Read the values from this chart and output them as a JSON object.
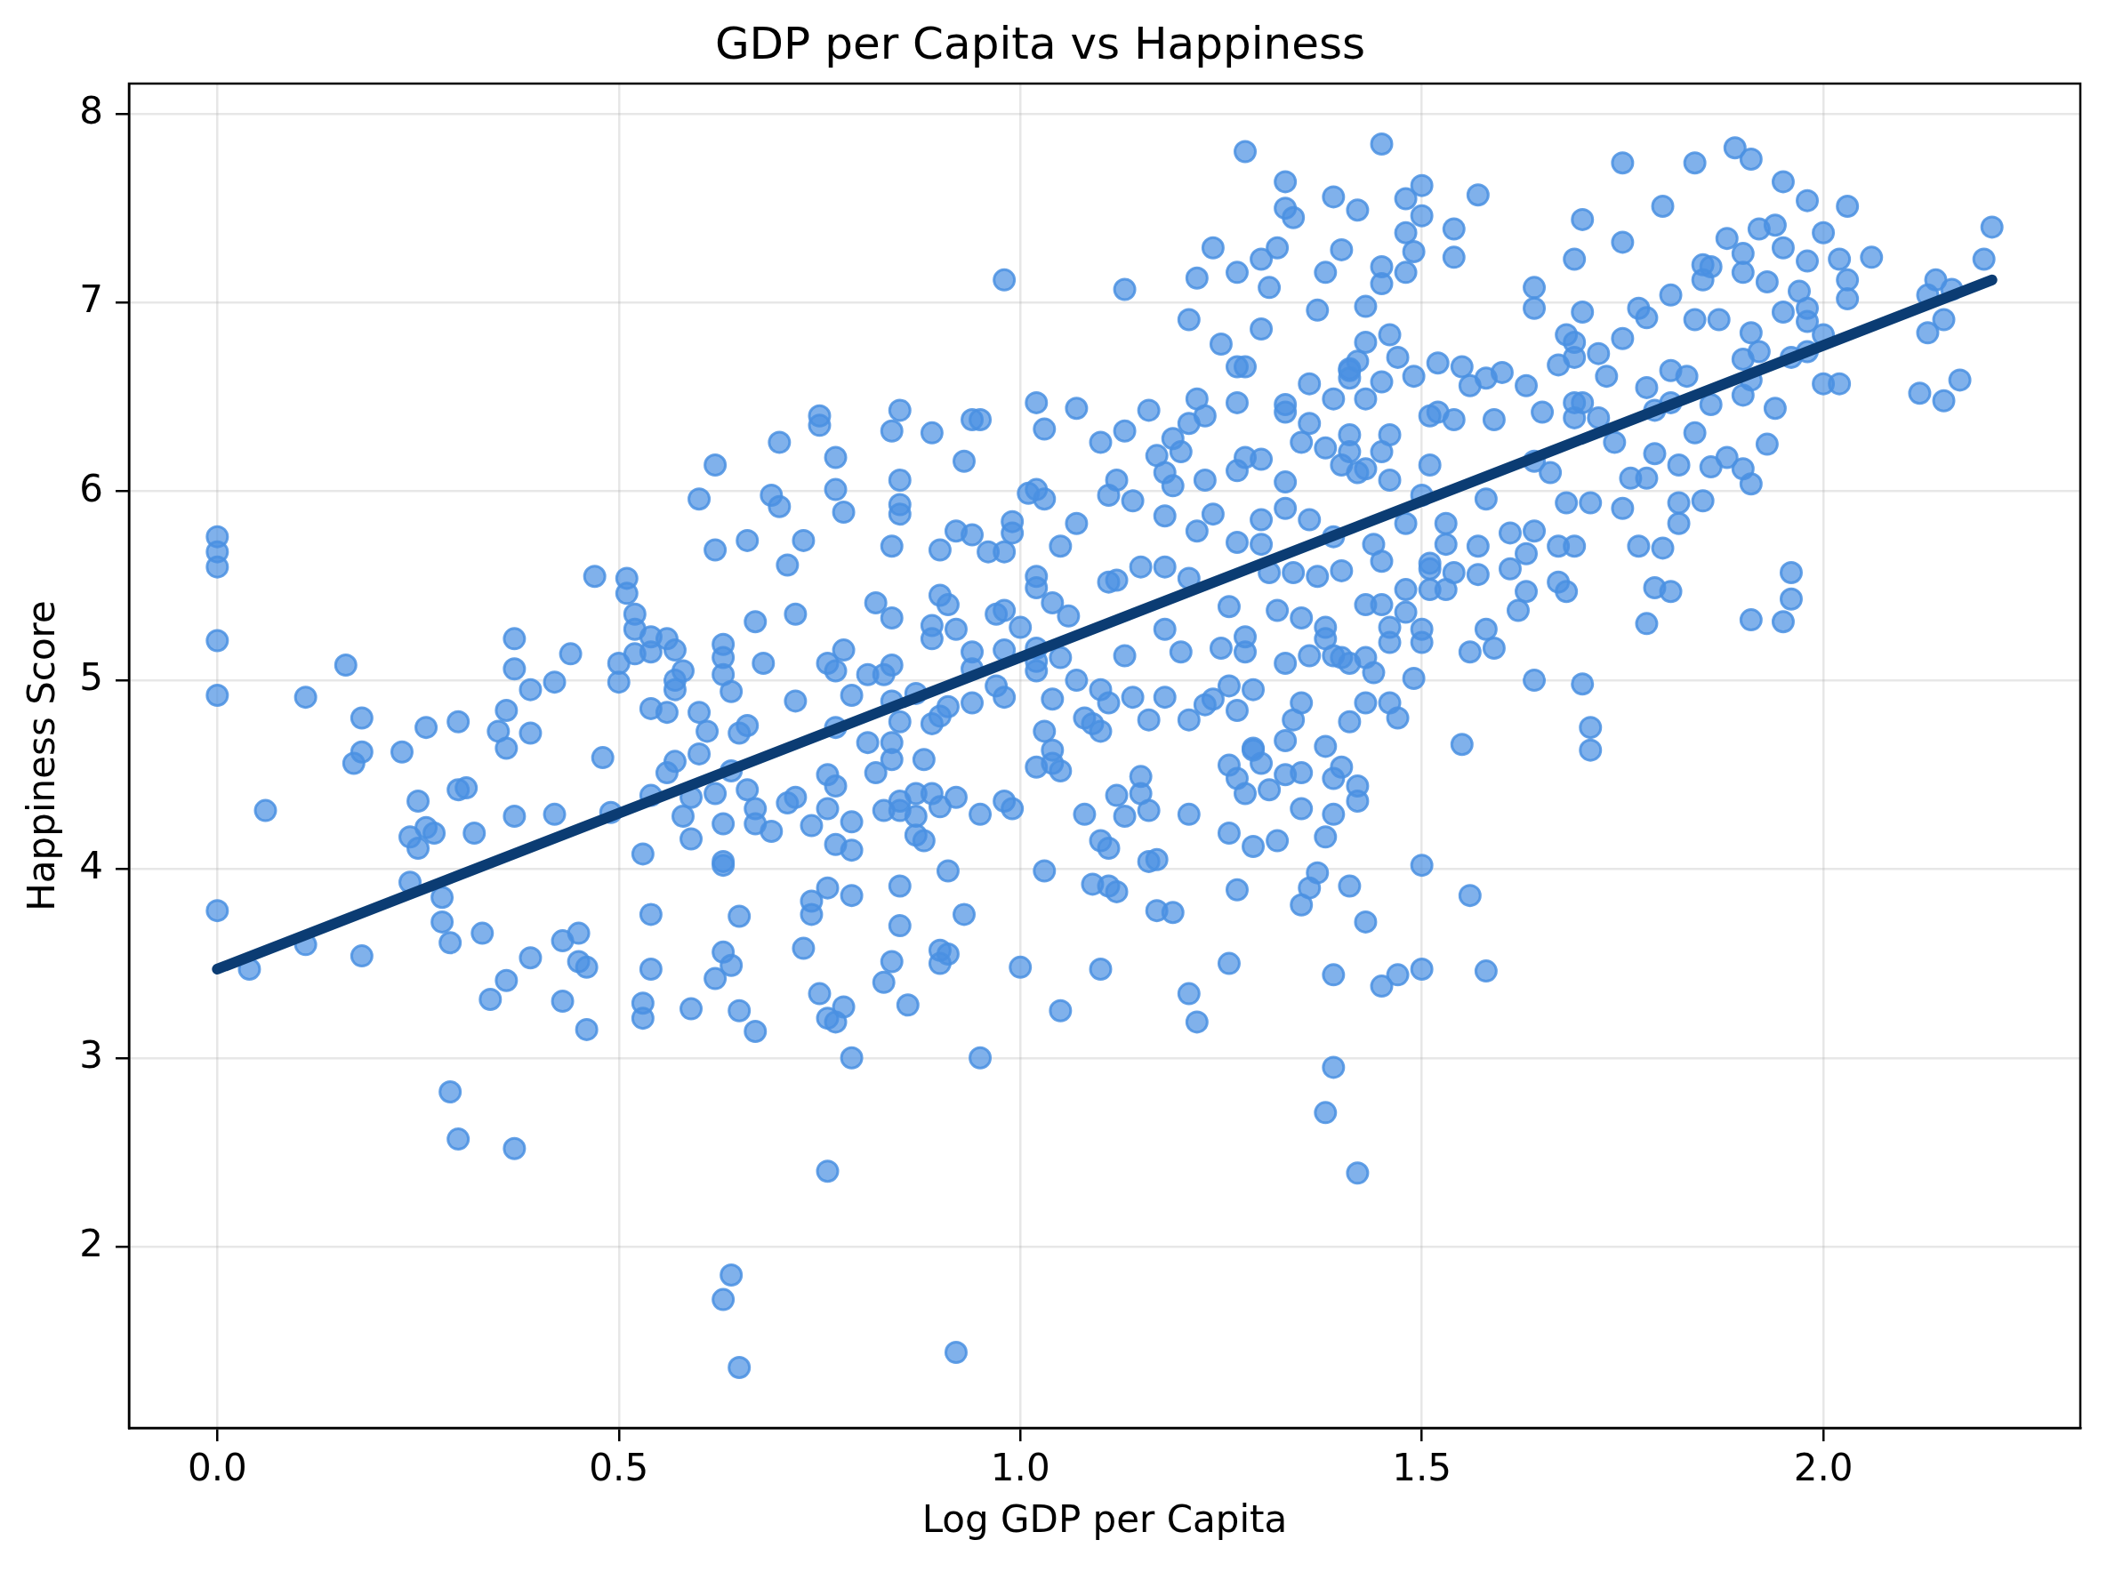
{
  "chart_data": {
    "type": "scatter",
    "title": "GDP per Capita vs Happiness",
    "xlabel": "Log GDP per Capita",
    "ylabel": "Happiness Score",
    "xlim": [
      -0.11,
      2.32
    ],
    "ylim": [
      1.04,
      8.16
    ],
    "xticks": [
      {
        "value": 0,
        "label": "0.0"
      },
      0.5,
      {
        "value": 1,
        "label": "1.0"
      },
      1.5,
      {
        "value": 2,
        "label": "2.0"
      }
    ],
    "yticks": [
      2,
      3,
      4,
      5,
      6,
      7,
      8
    ],
    "grid": true,
    "marker": "circle",
    "series": [
      {
        "color": "#4a90e2",
        "x": [
          0,
          0,
          0,
          0,
          0,
          0.11,
          0.16,
          0.18,
          0.26,
          0.3,
          0.37,
          0.37,
          0.39,
          0.42,
          0.36,
          0.39,
          0.35,
          0.44,
          0.47,
          0.51,
          0.51,
          0.52,
          0.52,
          0.54,
          0.52,
          0.54,
          0.56,
          0.57,
          0.5,
          0.5,
          0.57,
          0.58,
          0.57,
          0.54,
          0.56,
          0.6,
          0.61,
          0.6,
          0.62,
          0.62,
          0.63,
          0.63,
          0.63,
          0.64,
          0.66,
          0.68,
          0.67,
          0.66,
          0.65,
          0.7,
          0.69,
          0.7,
          0.73,
          0.71,
          0.72,
          0.72,
          0.75,
          0.75,
          0.77,
          0.77,
          0.78,
          0.78,
          0.76,
          0.77,
          0.79,
          0.81,
          0.83,
          0.84,
          0.84,
          0.82,
          0.81,
          0.85,
          0.84,
          0.85,
          0.85,
          0.85,
          0.84,
          0.89,
          0.94,
          0.95,
          0.93,
          0.98,
          1.02,
          1.03,
          1.07,
          0.9,
          0.92,
          0.94,
          0.96,
          0.98,
          0.99,
          0.99,
          0.9,
          0.91,
          0.89,
          0.89,
          0.92,
          0.97,
          0.98,
          1.0,
          0.94,
          0.98,
          1.01,
          1.02,
          1.03,
          1.02,
          1.02,
          1.04,
          1.06,
          1.07,
          1.05,
          1.02,
          1.02,
          0.97,
          0.98,
          0.94,
          0.94,
          0.91,
          0.89,
          0.84,
          0.87,
          0.9,
          0.84,
          0.77,
          0.85,
          0,
          0.04,
          0.06,
          0.11,
          0.18,
          0.17,
          0.18,
          0.23,
          0.25,
          0.24,
          0.25,
          0.26,
          0.27,
          0.24,
          0.28,
          0.28,
          0.29,
          0.29,
          0.3,
          0.37,
          0.3,
          0.31,
          0.32,
          0.33,
          0.34,
          0.36,
          0.37,
          0.36,
          0.39,
          0.42,
          0.43,
          0.45,
          0.45,
          0.46,
          0.43,
          0.46,
          0.48,
          0.49,
          0.53,
          0.54,
          0.54,
          0.53,
          0.53,
          0.54,
          0.56,
          0.57,
          0.6,
          0.58,
          0.59,
          0.59,
          0.59,
          0.62,
          0.62,
          0.63,
          0.63,
          0.63,
          0.63,
          0.64,
          0.65,
          0.65,
          0.67,
          0.64,
          0.66,
          0.67,
          0.69,
          0.67,
          0.71,
          0.72,
          0.64,
          0.63,
          0.65,
          0.76,
          0.73,
          0.75,
          0.76,
          0.77,
          0.79,
          0.78,
          0.76,
          0.74,
          0.74,
          0.79,
          0.74,
          0.76,
          0.76,
          0.79,
          0.79,
          0.77,
          0.77,
          0.82,
          0.84,
          0.85,
          0.83,
          0.84,
          0.85,
          0.86,
          0.83,
          0.85,
          0.87,
          0.87,
          0.88,
          0.85,
          0.87,
          0.9,
          0.92,
          0.89,
          0.88,
          0.91,
          0.93,
          0.9,
          0.9,
          0.91,
          0.92,
          0.95,
          0.95,
          0.98,
          0.99,
          1.0,
          1.03,
          1.05,
          1.09,
          1.08,
          1.02,
          1.04,
          1.03,
          1.04,
          1.05,
          1.08,
          1.04,
          1.07,
          1.02,
          1.05,
          1.09,
          1.1,
          2.21,
          2.2,
          2.14,
          2.13,
          2.16,
          2.15,
          2.13,
          2.17,
          2.12,
          2.15,
          2.06,
          2.03,
          2.03,
          2.03,
          2.02,
          2.0,
          2.02,
          1.98,
          2.0,
          1.98,
          1.95,
          1.91,
          1.89,
          1.84,
          1.75,
          1.8,
          1.7,
          1.69,
          1.75,
          1.96,
          1.96,
          1.95,
          1.91,
          1.93,
          1.94,
          1.78,
          1.79,
          1.81,
          1.77,
          1.8,
          1.82,
          1.64,
          1.7,
          1.71,
          1.71,
          1.55,
          1.45,
          1.28,
          1.33,
          1.33,
          1.34,
          1.39,
          1.42,
          1.48,
          1.5,
          1.5,
          1.57,
          1.54,
          1.48,
          1.49,
          1.54,
          1.24,
          1.27,
          1.22,
          1.13,
          1.32,
          1.3,
          1.31,
          1.38,
          1.4,
          1.45,
          1.45,
          1.43,
          1.48,
          1.37,
          1.21,
          1.3,
          1.25,
          1.28,
          1.27,
          1.16,
          1.22,
          1.27,
          1.33,
          1.36,
          1.39,
          1.36,
          1.43,
          1.45,
          1.49,
          1.47,
          1.41,
          1.42,
          1.46,
          1.52,
          1.55,
          1.56,
          1.58,
          1.63,
          1.64,
          1.64,
          1.7,
          1.67,
          1.69,
          1.72,
          1.68,
          1.69,
          1.77,
          1.75,
          1.78,
          1.81,
          1.88,
          1.85,
          1.86,
          1.92,
          1.94,
          1.95,
          1.9,
          1.93,
          1.97,
          1.98,
          1.95,
          1.98,
          1.96,
          2.0,
          1.98,
          1.9,
          1.91,
          1.92,
          1.87,
          1.84,
          1.85,
          1.9,
          1.91,
          1.9,
          1.86,
          1.83,
          1.81,
          1.81,
          1.84,
          1.79,
          1.79,
          1.82,
          1.86,
          1.88,
          1.9,
          1.91,
          1.78,
          1.73,
          1.7,
          1.69,
          1.72,
          1.69,
          1.74,
          1.76,
          1.78,
          1.82,
          1.85,
          1.75,
          1.71,
          1.68,
          1.66,
          1.65,
          1.64,
          1.64,
          1.63,
          1.61,
          1.67,
          1.69,
          1.67,
          1.68,
          1.63,
          1.62,
          1.57,
          1.57,
          1.61,
          1.58,
          1.6,
          1.59,
          1.54,
          1.52,
          1.51,
          1.51,
          1.46,
          1.43,
          1.4,
          1.42,
          1.45,
          1.46,
          1.5,
          1.48,
          1.53,
          1.53,
          1.51,
          1.51,
          1.51,
          1.53,
          1.54,
          1.58,
          1.59,
          1.56,
          1.48,
          1.48,
          1.45,
          1.46,
          1.46,
          1.5,
          1.5,
          1.49,
          1.47,
          1.46,
          1.43,
          1.44,
          1.41,
          1.43,
          1.38,
          1.38,
          1.39,
          1.41,
          1.4,
          1.36,
          1.33,
          1.35,
          1.34,
          1.33,
          1.38,
          1.29,
          1.27,
          1.26,
          1.29,
          1.28,
          1.28,
          1.24,
          1.23,
          1.21,
          1.16,
          1.14,
          1.18,
          1.11,
          1.1,
          1.13,
          1.2,
          1.25,
          1.18,
          1.21,
          1.26,
          1.32,
          1.35,
          1.31,
          1.34,
          1.37,
          1.4,
          1.43,
          1.45,
          1.44,
          1.39,
          1.36,
          1.33,
          1.3,
          1.27,
          1.24,
          1.3,
          1.22,
          1.18,
          1.14,
          1.11,
          1.12,
          1.15,
          1.11,
          1.18,
          1.19,
          1.23,
          1.28,
          1.27,
          1.3,
          1.33,
          1.35,
          1.38,
          1.33,
          1.23,
          1.21,
          1.2,
          1.17,
          1.18,
          1.13,
          1.1,
          1.12,
          1.19,
          1.41,
          1.43,
          1.41,
          1.41,
          1.41,
          1.5,
          1.56,
          1.58,
          1.5,
          1.47,
          1.45,
          1.39,
          1.43,
          1.41,
          1.37,
          1.36,
          1.35,
          1.27,
          1.26,
          1.21,
          1.22,
          1.39,
          1.38,
          1.42,
          1.21,
          1.26,
          1.29,
          1.32,
          1.38,
          1.39,
          1.42,
          1.42,
          1.4,
          1.39,
          1.35,
          1.35,
          1.33,
          1.16,
          1.17,
          1.17,
          1.19,
          1.1,
          1.12,
          1.11,
          1.1,
          1.11,
          1.13,
          1.16,
          1.15,
          1.15,
          1.12,
          1.26,
          1.27,
          1.3,
          1.28,
          1.31,
          1.29
        ],
        "values": [
          5.76,
          5.68,
          5.6,
          5.21,
          4.92,
          4.91,
          5.08,
          4.8,
          4.75,
          4.78,
          5.22,
          5.06,
          4.95,
          4.99,
          4.84,
          4.72,
          4.73,
          5.14,
          5.55,
          5.54,
          5.46,
          5.35,
          5.27,
          5.23,
          5.14,
          5.15,
          5.22,
          5.16,
          5.09,
          4.99,
          5.0,
          5.05,
          4.95,
          4.85,
          4.83,
          4.83,
          4.73,
          5.96,
          6.14,
          5.69,
          5.19,
          5.12,
          5.03,
          4.94,
          5.74,
          5.09,
          5.31,
          4.76,
          4.72,
          6.26,
          5.98,
          5.92,
          5.74,
          5.61,
          5.35,
          4.89,
          6.35,
          6.4,
          6.18,
          6.01,
          5.89,
          5.16,
          5.09,
          5.05,
          4.92,
          5.03,
          5.03,
          5.08,
          5.33,
          5.41,
          4.67,
          6.43,
          6.32,
          6.06,
          5.93,
          5.88,
          5.71,
          6.31,
          6.38,
          6.38,
          6.16,
          7.12,
          6.47,
          6.33,
          6.44,
          5.69,
          5.79,
          5.77,
          5.68,
          5.68,
          5.84,
          5.78,
          5.45,
          5.4,
          5.29,
          5.22,
          5.27,
          5.35,
          5.37,
          5.28,
          5.15,
          5.16,
          5.99,
          6.01,
          5.96,
          5.55,
          5.49,
          5.41,
          5.34,
          5.83,
          5.71,
          5.17,
          5.1,
          4.97,
          4.91,
          5.06,
          4.88,
          4.86,
          4.77,
          4.89,
          4.93,
          4.81,
          4.67,
          4.75,
          4.78,
          3.78,
          3.47,
          4.31,
          3.6,
          3.54,
          4.56,
          4.62,
          4.62,
          4.36,
          4.17,
          4.11,
          4.22,
          4.19,
          3.93,
          3.85,
          3.72,
          3.61,
          2.82,
          2.57,
          2.52,
          4.42,
          4.43,
          4.19,
          3.66,
          3.31,
          3.41,
          4.28,
          4.64,
          3.53,
          4.29,
          3.62,
          3.66,
          3.51,
          3.48,
          3.3,
          3.15,
          4.59,
          4.3,
          4.08,
          3.76,
          3.47,
          3.29,
          3.21,
          4.39,
          4.51,
          4.57,
          4.61,
          4.28,
          4.16,
          4.38,
          3.26,
          3.42,
          4.4,
          4.24,
          4.04,
          4.02,
          3.56,
          3.49,
          3.75,
          3.25,
          3.14,
          4.52,
          4.42,
          4.32,
          4.2,
          4.24,
          4.35,
          4.38,
          1.85,
          1.72,
          1.36,
          2.4,
          3.58,
          3.34,
          3.21,
          3.19,
          3.0,
          3.27,
          3.9,
          3.83,
          3.76,
          3.86,
          4.23,
          4.32,
          4.5,
          4.25,
          4.1,
          4.13,
          4.44,
          4.51,
          4.58,
          3.91,
          3.4,
          3.51,
          3.7,
          3.28,
          4.31,
          4.31,
          4.28,
          4.18,
          4.15,
          4.36,
          4.4,
          4.33,
          4.38,
          4.4,
          4.58,
          3.99,
          3.76,
          3.57,
          3.5,
          3.55,
          1.44,
          3.0,
          4.29,
          4.36,
          4.32,
          3.48,
          3.99,
          3.25,
          3.92,
          4.29,
          4.54,
          4.56,
          4.73,
          4.63,
          4.52,
          4.8,
          4.9,
          5.0,
          5.05,
          5.12,
          4.77,
          4.95,
          7.4,
          7.23,
          7.12,
          7.04,
          7.07,
          6.91,
          6.84,
          6.59,
          6.52,
          6.48,
          7.24,
          7.51,
          7.12,
          7.02,
          7.23,
          6.57,
          6.57,
          7.22,
          7.37,
          7.54,
          7.64,
          7.76,
          7.82,
          7.74,
          7.74,
          7.51,
          7.44,
          7.23,
          7.32,
          5.57,
          5.43,
          5.31,
          5.32,
          6.25,
          6.44,
          5.3,
          5.49,
          5.47,
          5.71,
          5.7,
          5.83,
          5.0,
          4.98,
          4.75,
          4.63,
          4.66,
          7.84,
          7.8,
          7.64,
          7.5,
          7.45,
          7.56,
          7.49,
          7.55,
          7.62,
          7.46,
          7.57,
          7.39,
          7.37,
          7.27,
          7.24,
          7.29,
          7.16,
          7.13,
          7.07,
          7.29,
          7.23,
          7.08,
          7.16,
          7.28,
          7.1,
          7.19,
          6.98,
          7.16,
          6.96,
          6.91,
          6.86,
          6.78,
          6.66,
          6.66,
          6.43,
          6.49,
          6.47,
          6.46,
          6.57,
          6.49,
          6.36,
          6.49,
          6.58,
          6.61,
          6.71,
          6.64,
          6.69,
          6.83,
          6.68,
          6.66,
          6.56,
          6.6,
          6.56,
          7.08,
          6.97,
          6.95,
          6.67,
          6.71,
          6.73,
          6.83,
          6.79,
          6.97,
          6.81,
          6.92,
          7.04,
          7.34,
          7.2,
          7.19,
          7.39,
          7.41,
          7.29,
          7.26,
          7.11,
          7.06,
          6.97,
          6.95,
          6.9,
          6.71,
          6.83,
          6.74,
          6.7,
          6.84,
          6.74,
          6.91,
          6.91,
          7.12,
          7.16,
          6.59,
          6.51,
          6.46,
          6.61,
          6.64,
          6.47,
          6.31,
          6.43,
          6.2,
          6.14,
          6.13,
          6.18,
          6.12,
          6.04,
          6.55,
          6.61,
          6.47,
          6.47,
          6.39,
          6.39,
          6.26,
          6.07,
          6.07,
          5.94,
          5.95,
          5.91,
          5.94,
          5.94,
          6.1,
          6.42,
          6.16,
          5.79,
          5.67,
          5.78,
          5.71,
          5.71,
          5.52,
          5.47,
          5.47,
          5.37,
          5.71,
          5.56,
          5.59,
          5.96,
          6.63,
          6.38,
          6.38,
          6.42,
          6.4,
          6.14,
          6.3,
          6.12,
          6.14,
          6.1,
          6.21,
          6.06,
          5.98,
          5.83,
          5.83,
          5.72,
          5.59,
          5.62,
          5.48,
          5.48,
          5.57,
          5.27,
          5.17,
          5.15,
          5.48,
          5.36,
          5.4,
          5.28,
          5.2,
          5.27,
          5.2,
          5.01,
          4.8,
          4.88,
          4.88,
          5.04,
          4.78,
          5.12,
          5.28,
          5.22,
          5.13,
          5.09,
          5.12,
          5.13,
          5.09,
          4.88,
          4.79,
          4.68,
          4.65,
          4.64,
          4.84,
          4.97,
          4.95,
          5.15,
          5.23,
          4.9,
          4.87,
          4.79,
          4.79,
          4.91,
          4.91,
          4.88,
          4.73,
          5.13,
          5.15,
          5.17,
          5.27,
          5.54,
          5.39,
          5.37,
          5.33,
          5.57,
          5.57,
          5.55,
          5.58,
          5.4,
          5.63,
          5.72,
          5.76,
          5.85,
          5.91,
          5.72,
          5.73,
          5.88,
          5.85,
          5.79,
          5.87,
          5.95,
          5.98,
          5.53,
          5.6,
          5.52,
          5.6,
          6.03,
          6.06,
          6.18,
          6.11,
          6.17,
          6.05,
          6.26,
          6.23,
          6.42,
          6.4,
          6.36,
          6.21,
          6.19,
          6.1,
          6.32,
          6.26,
          6.06,
          6.28,
          6.65,
          6.79,
          6.6,
          6.21,
          6.3,
          4.02,
          3.86,
          3.46,
          3.47,
          3.44,
          3.38,
          3.44,
          3.72,
          3.91,
          3.98,
          3.9,
          3.81,
          3.89,
          3.5,
          3.34,
          3.19,
          2.95,
          2.71,
          2.39,
          4.29,
          4.19,
          4.12,
          4.15,
          4.17,
          4.29,
          4.36,
          4.44,
          4.54,
          4.48,
          4.32,
          4.51,
          4.5,
          4.04,
          4.05,
          3.78,
          3.77,
          3.47,
          3.88,
          3.91,
          4.15,
          4.11,
          4.28,
          4.31,
          4.49,
          4.4,
          4.39,
          4.55,
          4.48,
          4.56,
          4.4,
          4.42,
          4.63
        ]
      },
      {
        "type": "line",
        "color": "#0b3c73",
        "marker": "none",
        "x": [
          0,
          2.21
        ],
        "values": [
          3.47,
          7.12
        ]
      }
    ]
  }
}
